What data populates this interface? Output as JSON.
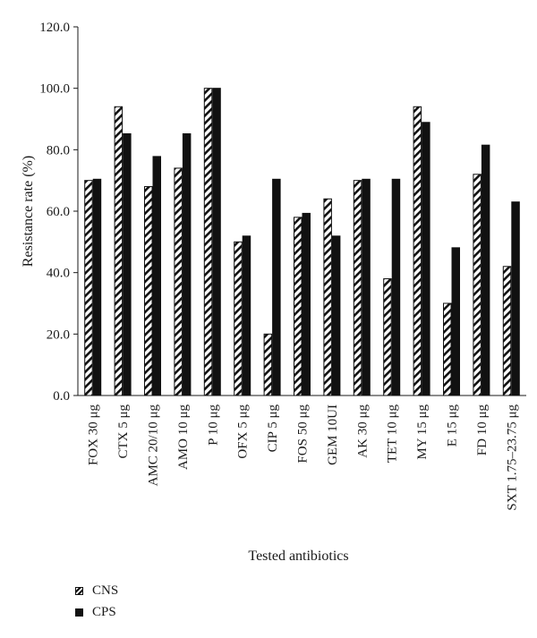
{
  "colors": {
    "cps": "#111111",
    "cns_stripe": "#111111",
    "background": "#ffffff",
    "axis": "#1a1a1a"
  },
  "chart_data": {
    "type": "bar",
    "title": "",
    "xlabel": "Tested antibiotics",
    "ylabel": "Resistance rate (%)",
    "ylim": [
      0,
      120
    ],
    "yticks": [
      "0.0",
      "20.0",
      "40.0",
      "60.0",
      "80.0",
      "100.0",
      "120.0"
    ],
    "grid": false,
    "legend_position": "bottom-left",
    "categories": [
      "FOX 30 μg",
      "CTX 5 μg",
      "AMC 20/10 μg",
      "AMO 10 μg",
      "P 10 μg",
      "OFX 5 μg",
      "CIP 5 μg",
      "FOS 50 μg",
      "GEM 10UI",
      "AK 30 μg",
      "TET 10 μg",
      "MY 15 μg",
      "E 15 μg",
      "FD 10 μg",
      "SXT 1.75–23.75 μg"
    ],
    "series": [
      {
        "name": "CNS",
        "values": [
          70,
          94,
          68,
          74,
          100,
          50,
          20,
          58,
          64,
          70,
          38,
          94,
          30,
          72,
          42
        ]
      },
      {
        "name": "CPS",
        "values": [
          70.4,
          85.2,
          77.8,
          85.2,
          100,
          51.9,
          70.4,
          59.3,
          51.9,
          70.4,
          70.4,
          88.9,
          48.1,
          81.5,
          63
        ]
      }
    ]
  }
}
